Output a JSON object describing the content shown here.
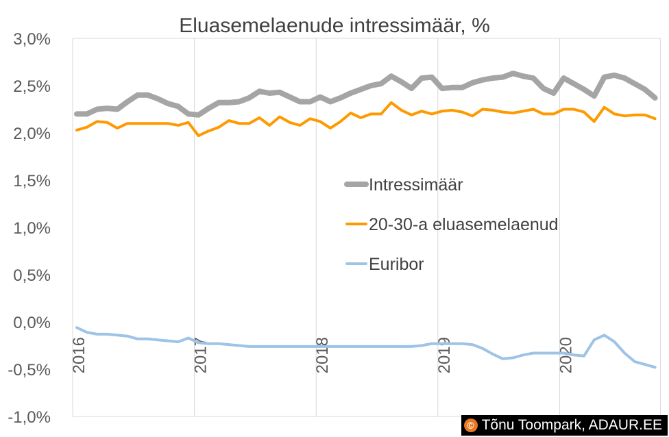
{
  "chart_data": {
    "type": "line",
    "title": "Eluasemelaenude intressimäär, %",
    "xlabel": "",
    "ylabel": "",
    "ylim": [
      -0.01,
      0.03
    ],
    "ytick_labels": [
      "3,0%",
      "2,5%",
      "2,0%",
      "1,5%",
      "1,0%",
      "0,5%",
      "0,0%",
      "-0,5%",
      "-1,0%"
    ],
    "ytick_values": [
      0.03,
      0.025,
      0.02,
      0.015,
      0.01,
      0.005,
      0.0,
      -0.005,
      -0.01
    ],
    "x_start": "2016-01",
    "xtick_labels": [
      "2016",
      "2017",
      "2018",
      "2019",
      "2020"
    ],
    "grid": "vertical",
    "legend_position": "center-right",
    "series": [
      {
        "name": "Intressimäär",
        "color": "#a5a5a5",
        "values": [
          2.2,
          2.2,
          2.25,
          2.26,
          2.25,
          2.33,
          2.4,
          2.4,
          2.36,
          2.31,
          2.28,
          2.2,
          2.19,
          2.26,
          2.32,
          2.32,
          2.33,
          2.37,
          2.44,
          2.42,
          2.43,
          2.38,
          2.33,
          2.33,
          2.38,
          2.33,
          2.37,
          2.42,
          2.46,
          2.5,
          2.52,
          2.6,
          2.54,
          2.47,
          2.58,
          2.59,
          2.47,
          2.48,
          2.48,
          2.53,
          2.56,
          2.58,
          2.59,
          2.63,
          2.6,
          2.58,
          2.47,
          2.42,
          2.58,
          2.52,
          2.46,
          2.39,
          2.59,
          2.61,
          2.58,
          2.52,
          2.46,
          2.37
        ]
      },
      {
        "name": "20-30-a eluasemelaenud",
        "color": "#ff9900",
        "values": [
          2.03,
          2.06,
          2.12,
          2.11,
          2.05,
          2.1,
          2.1,
          2.1,
          2.1,
          2.1,
          2.08,
          2.11,
          1.97,
          2.02,
          2.06,
          2.13,
          2.1,
          2.1,
          2.16,
          2.08,
          2.17,
          2.11,
          2.08,
          2.15,
          2.12,
          2.05,
          2.12,
          2.21,
          2.16,
          2.2,
          2.2,
          2.32,
          2.24,
          2.19,
          2.23,
          2.2,
          2.23,
          2.24,
          2.22,
          2.18,
          2.25,
          2.24,
          2.22,
          2.21,
          2.23,
          2.25,
          2.2,
          2.2,
          2.25,
          2.25,
          2.22,
          2.12,
          2.27,
          2.2,
          2.18,
          2.19,
          2.19,
          2.15
        ]
      },
      {
        "name": "Euribor",
        "color": "#9dc3e6",
        "values": [
          -0.06,
          -0.11,
          -0.13,
          -0.13,
          -0.14,
          -0.15,
          -0.18,
          -0.18,
          -0.19,
          -0.2,
          -0.21,
          -0.17,
          -0.22,
          -0.23,
          -0.23,
          -0.24,
          -0.25,
          -0.26,
          -0.26,
          -0.26,
          -0.26,
          -0.26,
          -0.26,
          -0.26,
          -0.26,
          -0.26,
          -0.26,
          -0.26,
          -0.26,
          -0.26,
          -0.26,
          -0.26,
          -0.26,
          -0.26,
          -0.25,
          -0.23,
          -0.23,
          -0.23,
          -0.23,
          -0.24,
          -0.28,
          -0.34,
          -0.39,
          -0.38,
          -0.35,
          -0.33,
          -0.33,
          -0.33,
          -0.33,
          -0.35,
          -0.36,
          -0.19,
          -0.14,
          -0.21,
          -0.33,
          -0.42,
          -0.45,
          -0.48
        ]
      }
    ]
  },
  "copyright": {
    "icon": "©",
    "text": "Tõnu Toompark, ADAUR.EE"
  }
}
